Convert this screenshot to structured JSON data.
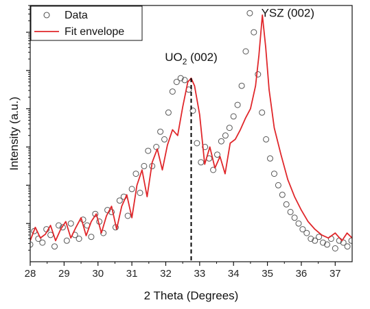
{
  "chart_data": {
    "type": "scatter",
    "xlabel": "2 Theta (Degrees)",
    "ylabel": "Intensity (a.u.)",
    "xlim": [
      28,
      37.5
    ],
    "ylim": [
      0,
      6.7
    ],
    "y_scale": "log",
    "y_tick_labels_shown": false,
    "x_ticks": [
      28,
      29,
      30,
      31,
      32,
      33,
      34,
      35,
      36,
      37
    ],
    "grid": false,
    "legend": {
      "position": "top-left",
      "entries": [
        {
          "label": "Data",
          "marker": "open-circle",
          "color": "#555555"
        },
        {
          "label": "Fit envelope",
          "marker": "line",
          "color": "#e0262a"
        }
      ]
    },
    "annotations": [
      {
        "text_main": "UO",
        "text_sub": "2",
        "text_rest": " (002)",
        "x": 32.75,
        "y": 5.25
      },
      {
        "text_main": "YSZ (002)",
        "x": 35.4,
        "y": 6.4
      }
    ],
    "reference_line": {
      "x": 32.75,
      "style": "dashed",
      "color": "#000000"
    },
    "series": [
      {
        "name": "Fit envelope",
        "color": "#e0262a",
        "style": "line",
        "x": [
          28.0,
          28.15,
          28.3,
          28.45,
          28.6,
          28.75,
          28.9,
          29.05,
          29.2,
          29.35,
          29.5,
          29.65,
          29.8,
          29.95,
          30.1,
          30.25,
          30.4,
          30.55,
          30.7,
          30.85,
          31.0,
          31.15,
          31.3,
          31.45,
          31.6,
          31.75,
          31.9,
          32.05,
          32.2,
          32.35,
          32.5,
          32.65,
          32.75,
          32.85,
          33.0,
          33.15,
          33.3,
          33.45,
          33.6,
          33.75,
          33.9,
          34.05,
          34.2,
          34.35,
          34.5,
          34.65,
          34.75,
          34.85,
          34.95,
          35.05,
          35.2,
          35.4,
          35.6,
          35.8,
          36.0,
          36.2,
          36.4,
          36.6,
          36.8,
          37.0,
          37.2,
          37.35,
          37.5
        ],
        "y": [
          0.55,
          0.9,
          0.62,
          0.72,
          0.95,
          0.55,
          0.85,
          1.05,
          0.62,
          0.9,
          1.15,
          0.68,
          1.05,
          1.25,
          0.75,
          1.2,
          1.45,
          0.85,
          1.45,
          1.75,
          1.15,
          2.0,
          2.4,
          1.7,
          2.6,
          2.95,
          2.4,
          3.05,
          3.45,
          3.3,
          4.05,
          4.7,
          4.8,
          4.6,
          3.85,
          2.55,
          3.0,
          2.45,
          2.75,
          2.3,
          3.1,
          3.2,
          3.45,
          3.75,
          4.0,
          4.6,
          5.4,
          6.45,
          5.6,
          4.5,
          3.5,
          2.8,
          2.15,
          1.7,
          1.35,
          1.05,
          0.85,
          0.7,
          0.62,
          0.75,
          0.55,
          0.75,
          0.62
        ]
      },
      {
        "name": "Data",
        "color": "#555555",
        "style": "open-circle",
        "x": [
          28.0,
          28.12,
          28.24,
          28.36,
          28.48,
          28.6,
          28.72,
          28.84,
          28.96,
          29.08,
          29.2,
          29.32,
          29.44,
          29.56,
          29.68,
          29.8,
          29.92,
          30.04,
          30.16,
          30.28,
          30.4,
          30.52,
          30.64,
          30.76,
          30.88,
          31.0,
          31.12,
          31.24,
          31.36,
          31.48,
          31.6,
          31.72,
          31.84,
          31.96,
          32.08,
          32.2,
          32.32,
          32.44,
          32.56,
          32.68,
          32.8,
          32.92,
          33.04,
          33.16,
          33.28,
          33.4,
          33.52,
          33.64,
          33.76,
          33.88,
          34.0,
          34.12,
          34.24,
          34.36,
          34.48,
          34.6,
          34.72,
          34.84,
          34.96,
          35.08,
          35.2,
          35.32,
          35.44,
          35.56,
          35.68,
          35.8,
          35.92,
          36.04,
          36.16,
          36.28,
          36.4,
          36.52,
          36.64,
          36.76,
          36.88,
          37.0,
          37.12,
          37.24,
          37.36,
          37.48
        ],
        "y": [
          0.45,
          0.8,
          0.6,
          0.5,
          0.85,
          0.7,
          0.4,
          0.95,
          0.9,
          0.55,
          1.0,
          0.7,
          0.6,
          1.1,
          0.95,
          0.65,
          1.25,
          1.05,
          0.75,
          1.35,
          1.3,
          0.9,
          1.6,
          1.7,
          1.2,
          1.9,
          2.3,
          1.8,
          2.5,
          2.9,
          2.5,
          3.0,
          3.4,
          3.2,
          3.9,
          4.45,
          4.7,
          4.8,
          4.75,
          4.5,
          3.95,
          3.1,
          2.6,
          3.0,
          2.7,
          2.4,
          2.8,
          3.15,
          3.3,
          3.5,
          3.8,
          4.1,
          4.6,
          5.5,
          6.5,
          6.0,
          4.9,
          3.9,
          3.2,
          2.7,
          2.3,
          2.0,
          1.75,
          1.5,
          1.3,
          1.15,
          1.0,
          0.85,
          0.75,
          0.6,
          0.55,
          0.65,
          0.5,
          0.45,
          0.6,
          0.35,
          0.55,
          0.5,
          0.4,
          0.55
        ]
      }
    ]
  }
}
